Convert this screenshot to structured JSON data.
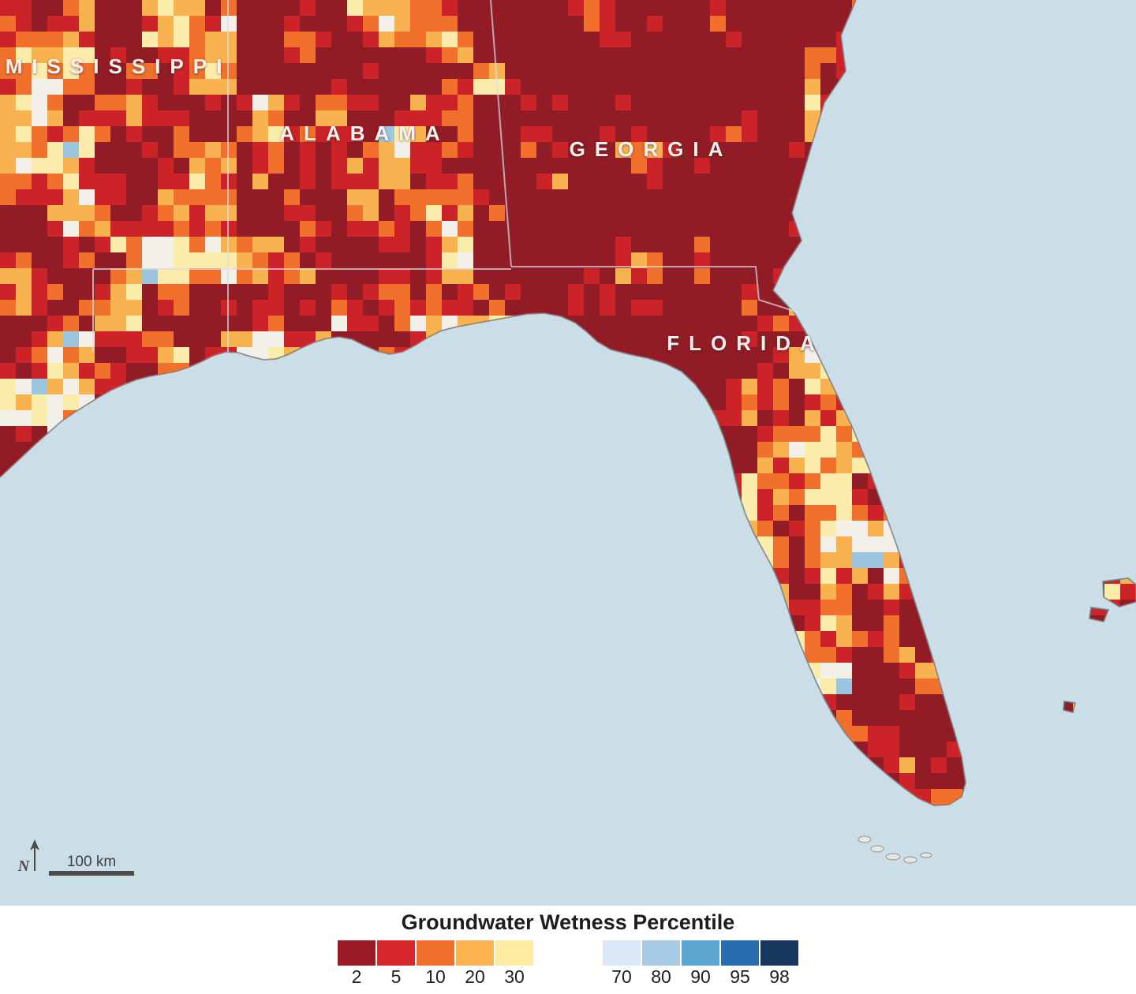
{
  "colors": {
    "ocean": "#cbdde6",
    "land_base": "#911c26",
    "coastline": "#75828a",
    "state_border": "#dadee1",
    "island_fill": "#e9e6df",
    "island_stroke": "#8b9298",
    "scale_bar": "#4d4d4d"
  },
  "map": {
    "states": [
      {
        "label": "MISSISSIPPI"
      },
      {
        "label": "ALABAMA"
      },
      {
        "label": "GEORGIA"
      },
      {
        "label": "FLORIDA"
      }
    ],
    "scale_bar_label": "100 km",
    "north_label": "N",
    "cells": {
      "size": 20,
      "colors": [
        "#911c26",
        "#cb2327",
        "#f0702c",
        "#f9b250",
        "#fcecac",
        "#f3f0e9",
        "#9cc6e0"
      ],
      "thresholds": [
        0.545,
        0.645,
        0.735,
        0.815,
        0.895,
        0.997
      ]
    }
  },
  "legend": {
    "title": "Groundwater Wetness Percentile",
    "dry_group": {
      "labels": [
        "2",
        "5",
        "10",
        "20",
        "30"
      ],
      "colors": [
        "#9a1b26",
        "#d7272d",
        "#f0712c",
        "#fbb44f",
        "#fdeba4"
      ]
    },
    "wet_group": {
      "labels": [
        "70",
        "80",
        "90",
        "95",
        "98"
      ],
      "colors": [
        "#dbe8f5",
        "#a8cbe5",
        "#5fa6d1",
        "#2a6cb0",
        "#16355f"
      ]
    }
  }
}
